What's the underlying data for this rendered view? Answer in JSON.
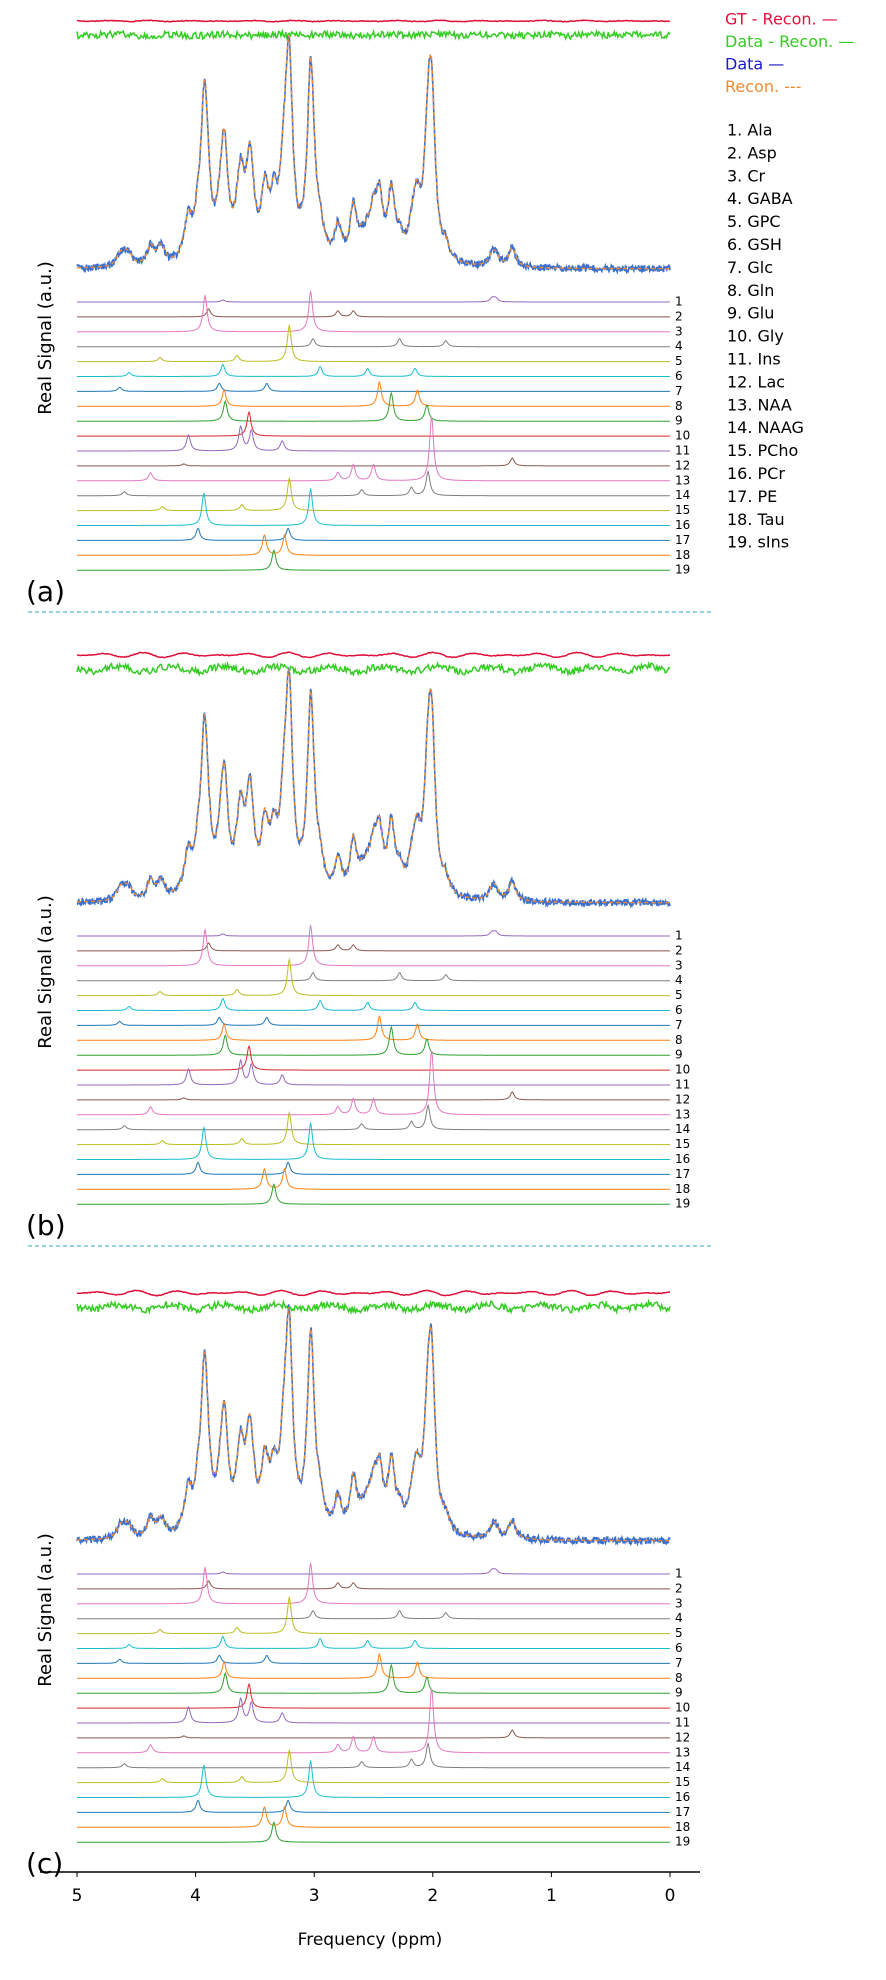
{
  "chart_data": {
    "type": "spectra",
    "xlabel": "Frequency (ppm)",
    "ylabel": "Real Signal (a.u.)",
    "xlim": [
      5,
      0
    ],
    "xticks": [
      5,
      4,
      3,
      2,
      1,
      0
    ],
    "legend": [
      {
        "name": "GT - Recon. —",
        "color": "#e0103c"
      },
      {
        "name": "Data - Recon. —",
        "color": "#33cc22"
      },
      {
        "name": "Data —",
        "color": "#1a1acc"
      },
      {
        "name": "Recon. ---",
        "color": "#f28a30"
      }
    ],
    "rows": [
      1,
      2,
      3,
      4,
      5,
      6,
      7,
      8,
      9,
      10,
      11,
      12,
      13,
      14,
      15,
      16,
      17,
      18,
      19
    ],
    "metabolites": [
      {
        "label": "1. Ala",
        "color": "#9467bd",
        "peaks": [
          [
            1.47,
            0.1
          ],
          [
            1.5,
            0.1
          ],
          [
            3.77,
            0.05
          ]
        ]
      },
      {
        "label": "2. Asp",
        "color": "#8c564b",
        "peaks": [
          [
            3.89,
            0.2
          ],
          [
            2.8,
            0.15
          ],
          [
            2.67,
            0.15
          ]
        ]
      },
      {
        "label": "3. Cr",
        "color": "#e377c2",
        "peaks": [
          [
            3.03,
            1.0
          ],
          [
            3.92,
            0.9
          ]
        ]
      },
      {
        "label": "4. GABA",
        "color": "#7f7f7f",
        "peaks": [
          [
            3.01,
            0.2
          ],
          [
            2.28,
            0.2
          ],
          [
            1.89,
            0.15
          ]
        ]
      },
      {
        "label": "5. GPC",
        "color": "#bcbd22",
        "peaks": [
          [
            3.21,
            0.9
          ],
          [
            3.65,
            0.15
          ],
          [
            4.3,
            0.1
          ]
        ]
      },
      {
        "label": "6. GSH",
        "color": "#17becf",
        "peaks": [
          [
            3.77,
            0.3
          ],
          [
            2.95,
            0.25
          ],
          [
            2.55,
            0.2
          ],
          [
            2.15,
            0.2
          ],
          [
            4.56,
            0.1
          ]
        ]
      },
      {
        "label": "7. Glc",
        "color": "#1f77b4",
        "peaks": [
          [
            3.4,
            0.2
          ],
          [
            3.8,
            0.2
          ],
          [
            4.64,
            0.1
          ]
        ]
      },
      {
        "label": "8. Gln",
        "color": "#ff7f0e",
        "peaks": [
          [
            3.76,
            0.4
          ],
          [
            2.45,
            0.6
          ],
          [
            2.13,
            0.4
          ]
        ]
      },
      {
        "label": "9. Glu",
        "color": "#2ca02c",
        "peaks": [
          [
            3.75,
            0.5
          ],
          [
            2.35,
            0.7
          ],
          [
            2.05,
            0.4
          ]
        ]
      },
      {
        "label": "10. Gly",
        "color": "#d62728",
        "peaks": [
          [
            3.55,
            0.6
          ]
        ]
      },
      {
        "label": "11. Ins",
        "color": "#9467bd",
        "peaks": [
          [
            3.53,
            0.5
          ],
          [
            3.62,
            0.6
          ],
          [
            4.06,
            0.4
          ],
          [
            3.27,
            0.25
          ]
        ]
      },
      {
        "label": "12. Lac",
        "color": "#8c564b",
        "peaks": [
          [
            1.33,
            0.2
          ],
          [
            4.1,
            0.05
          ]
        ]
      },
      {
        "label": "13. NAA",
        "color": "#e377c2",
        "peaks": [
          [
            2.01,
            1.6
          ],
          [
            2.5,
            0.4
          ],
          [
            2.67,
            0.4
          ],
          [
            4.38,
            0.2
          ],
          [
            2.8,
            0.2
          ]
        ]
      },
      {
        "label": "14. NAAG",
        "color": "#7f7f7f",
        "peaks": [
          [
            2.04,
            0.6
          ],
          [
            2.18,
            0.2
          ],
          [
            2.6,
            0.15
          ],
          [
            4.6,
            0.1
          ]
        ]
      },
      {
        "label": "15. PCho",
        "color": "#bcbd22",
        "peaks": [
          [
            3.21,
            0.8
          ],
          [
            3.61,
            0.15
          ],
          [
            4.28,
            0.1
          ]
        ]
      },
      {
        "label": "16. PCr",
        "color": "#17becf",
        "peaks": [
          [
            3.03,
            0.9
          ],
          [
            3.93,
            0.8
          ]
        ]
      },
      {
        "label": "17. PE",
        "color": "#1f77b4",
        "peaks": [
          [
            3.98,
            0.3
          ],
          [
            3.22,
            0.3
          ]
        ]
      },
      {
        "label": "18. Tau",
        "color": "#ff7f0e",
        "peaks": [
          [
            3.42,
            0.5
          ],
          [
            3.25,
            0.5
          ]
        ]
      },
      {
        "label": "19. sIns",
        "color": "#2ca02c",
        "peaks": [
          [
            3.34,
            0.5
          ]
        ]
      }
    ],
    "panels": [
      {
        "label": "(a)"
      },
      {
        "label": "(b)"
      },
      {
        "label": "(c)"
      }
    ]
  }
}
